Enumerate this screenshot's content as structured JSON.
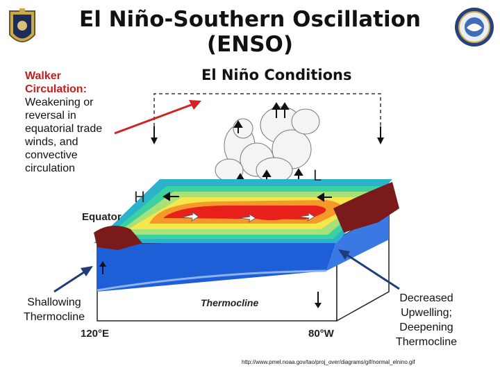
{
  "title": {
    "line1": "El Niño-Southern Oscillation",
    "line2": "(ENSO)"
  },
  "diagram": {
    "heading": "El Niño Conditions",
    "label_low": "L",
    "label_high": "H",
    "equator": "Equator",
    "thermocline": "Thermocline",
    "lon_west": "120°E",
    "lon_east": "80°W"
  },
  "annotations": {
    "walker_head": "Walker Circulation:",
    "walker_body": "Weakening or reversal in equatorial trade winds, and convective circulation",
    "shallowing": "Shallowing Thermocline",
    "decreased": "Decreased Upwelling; Deepening Thermocline"
  },
  "source_url": "http://www.pmel.noaa.gov/tao/proj_over/diagrams/gif/normal_elnino.gif",
  "colors": {
    "arrow_red": "#d42020",
    "arrow_navy": "#1f3c78",
    "ocean_blue": "#1e5fd8",
    "warm_red": "#e8201b"
  }
}
